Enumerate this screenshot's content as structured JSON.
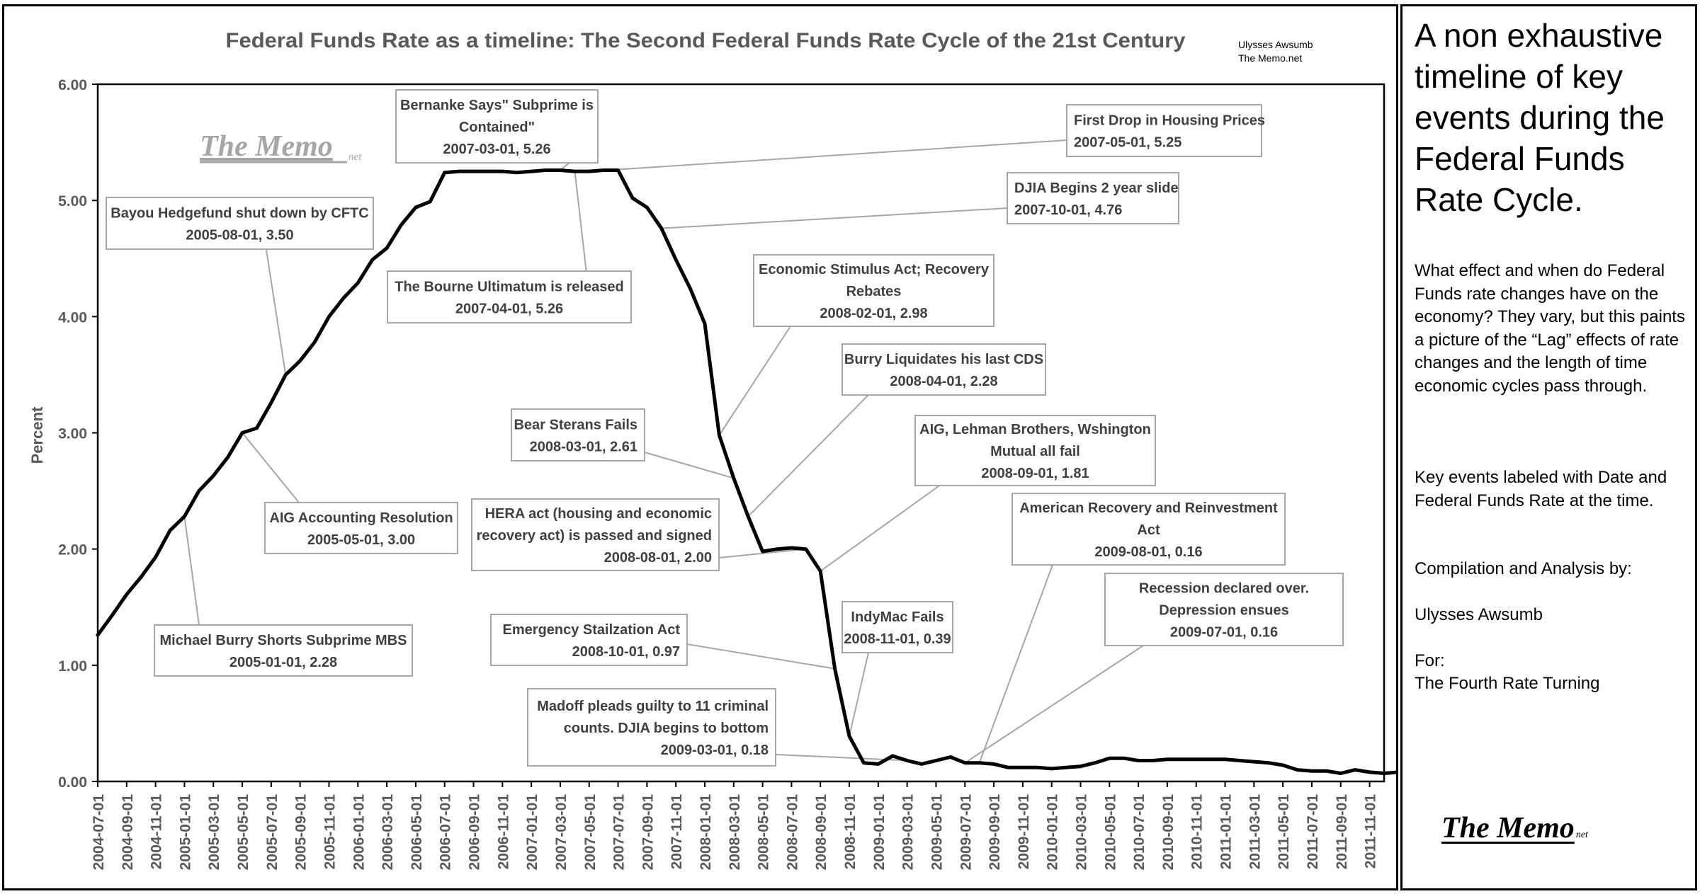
{
  "chart_data": {
    "type": "line",
    "title": "Federal Funds Rate as a timeline: The Second Federal Funds Rate Cycle of the 21st Century",
    "credit": [
      "Ulysses Awsumb",
      "The Memo.net"
    ],
    "watermark": "The Memo",
    "watermark_suffix": "net",
    "xlabel": "",
    "ylabel": "Percent",
    "ylim": [
      0,
      6
    ],
    "yticks": [
      "0.00",
      "1.00",
      "2.00",
      "3.00",
      "4.00",
      "5.00",
      "6.00"
    ],
    "grid": false,
    "line_color": "#000000",
    "x_start": "2004-07-01",
    "x_end": "2011-12-01",
    "xticks": [
      "2004-07-01",
      "2004-09-01",
      "2004-11-01",
      "2005-01-01",
      "2005-03-01",
      "2005-05-01",
      "2005-07-01",
      "2005-09-01",
      "2005-11-01",
      "2006-01-01",
      "2006-03-01",
      "2006-05-01",
      "2006-07-01",
      "2006-09-01",
      "2006-11-01",
      "2007-01-01",
      "2007-03-01",
      "2007-05-01",
      "2007-07-01",
      "2007-09-01",
      "2007-11-01",
      "2008-01-01",
      "2008-03-01",
      "2008-05-01",
      "2008-07-01",
      "2008-09-01",
      "2008-11-01",
      "2009-01-01",
      "2009-03-01",
      "2009-05-01",
      "2009-07-01",
      "2009-09-01",
      "2009-11-01",
      "2010-01-01",
      "2010-03-01",
      "2010-05-01",
      "2010-07-01",
      "2010-09-01",
      "2010-11-01",
      "2011-01-01",
      "2011-03-01",
      "2011-05-01",
      "2011-07-01",
      "2011-09-01",
      "2011-11-01"
    ],
    "series": [
      {
        "values": [
          1.26,
          1.43,
          1.61,
          1.76,
          1.93,
          2.16,
          2.28,
          2.5,
          2.63,
          2.79,
          3.0,
          3.04,
          3.26,
          3.5,
          3.62,
          3.78,
          4.0,
          4.16,
          4.29,
          4.49,
          4.59,
          4.79,
          4.94,
          4.99,
          5.24,
          5.25,
          5.25,
          5.25,
          5.25,
          5.24,
          5.25,
          5.26,
          5.26,
          5.25,
          5.25,
          5.26,
          5.26,
          5.02,
          4.94,
          4.76,
          4.49,
          4.24,
          3.94,
          2.98,
          2.61,
          2.28,
          1.98,
          2.0,
          2.01,
          2.0,
          1.81,
          0.97,
          0.39,
          0.16,
          0.15,
          0.22,
          0.18,
          0.15,
          0.18,
          0.21,
          0.16,
          0.16,
          0.15,
          0.12,
          0.12,
          0.12,
          0.11,
          0.12,
          0.13,
          0.16,
          0.2,
          0.2,
          0.18,
          0.18,
          0.19,
          0.19,
          0.19,
          0.19,
          0.19,
          0.18,
          0.17,
          0.16,
          0.14,
          0.1,
          0.09,
          0.09,
          0.07,
          0.1,
          0.08,
          0.07,
          0.08,
          0.07
        ]
      }
    ],
    "annotations": [
      {
        "lines": [
          "Bernanke Says\" Subprime is",
          "Contained\""
        ],
        "point": "2007-03-01, 5.26",
        "date": "2007-03-01",
        "value": 5.26
      },
      {
        "lines": [
          "First Drop in Housing Prices"
        ],
        "point": "2007-05-01, 5.25",
        "date": "2007-05-01",
        "value": 5.25
      },
      {
        "lines": [
          "DJIA Begins 2 year slide"
        ],
        "point": "2007-10-01, 4.76",
        "date": "2007-10-01",
        "value": 4.76
      },
      {
        "lines": [
          "Bayou Hedgefund shut down by CFTC"
        ],
        "point": "2005-08-01, 3.50",
        "date": "2005-08-01",
        "value": 3.5
      },
      {
        "lines": [
          "The Bourne Ultimatum is released"
        ],
        "point": "2007-04-01, 5.26",
        "date": "2007-04-01",
        "value": 5.26
      },
      {
        "lines": [
          "Economic Stimulus Act; Recovery",
          "Rebates"
        ],
        "point": "2008-02-01, 2.98",
        "date": "2008-02-01",
        "value": 2.98
      },
      {
        "lines": [
          "Burry Liquidates his last CDS"
        ],
        "point": "2008-04-01, 2.28",
        "date": "2008-04-01",
        "value": 2.28
      },
      {
        "lines": [
          "Bear Sterans Fails"
        ],
        "point": "2008-03-01, 2.61",
        "date": "2008-03-01",
        "value": 2.61
      },
      {
        "lines": [
          "AIG, Lehman Brothers, Wshington",
          "Mutual all fail"
        ],
        "point": "2008-09-01, 1.81",
        "date": "2008-09-01",
        "value": 1.81
      },
      {
        "lines": [
          "AIG Accounting Resolution"
        ],
        "point": "2005-05-01, 3.00",
        "date": "2005-05-01",
        "value": 3.0
      },
      {
        "lines": [
          "HERA act (housing and economic",
          "recovery act) is passed and signed"
        ],
        "point": "2008-08-01, 2.00",
        "date": "2008-08-01",
        "value": 2.0
      },
      {
        "lines": [
          "American Recovery and Reinvestment",
          "Act"
        ],
        "point": "2009-08-01, 0.16",
        "date": "2009-08-01",
        "value": 0.16
      },
      {
        "lines": [
          "Recession declared over.",
          "Depression ensues"
        ],
        "point": "2009-07-01, 0.16",
        "date": "2009-07-01",
        "value": 0.16
      },
      {
        "lines": [
          "Michael Burry Shorts Subprime MBS"
        ],
        "point": "2005-01-01, 2.28",
        "date": "2005-01-01",
        "value": 2.28
      },
      {
        "lines": [
          "Emergency Stailzation Act"
        ],
        "point": "2008-10-01, 0.97",
        "date": "2008-10-01",
        "value": 0.97
      },
      {
        "lines": [
          "IndyMac Fails"
        ],
        "point": "2008-11-01, 0.39",
        "date": "2008-11-01",
        "value": 0.39
      },
      {
        "lines": [
          "Madoff pleads guilty to 11 criminal",
          "counts. DJIA begins to bottom"
        ],
        "point": "2009-03-01, 0.18",
        "date": "2009-03-01",
        "value": 0.18
      }
    ]
  },
  "sidebar": {
    "title": "A non exhaustive timeline of key events during the Federal Funds Rate Cycle.",
    "paragraph1": "What effect and when do Federal Funds rate changes have on the economy? They vary, but this paints a picture of the “Lag” effects of rate changes and the length of time economic cycles pass through.",
    "paragraph2": "Key events labeled with Date and Federal Funds Rate at the time.",
    "compilation_label": "Compilation and Analysis by:",
    "author": "Ulysses Awsumb",
    "for_label": "For:",
    "for_value": "The Fourth Rate Turning",
    "logo": "The Memo",
    "logo_suffix": "net"
  }
}
